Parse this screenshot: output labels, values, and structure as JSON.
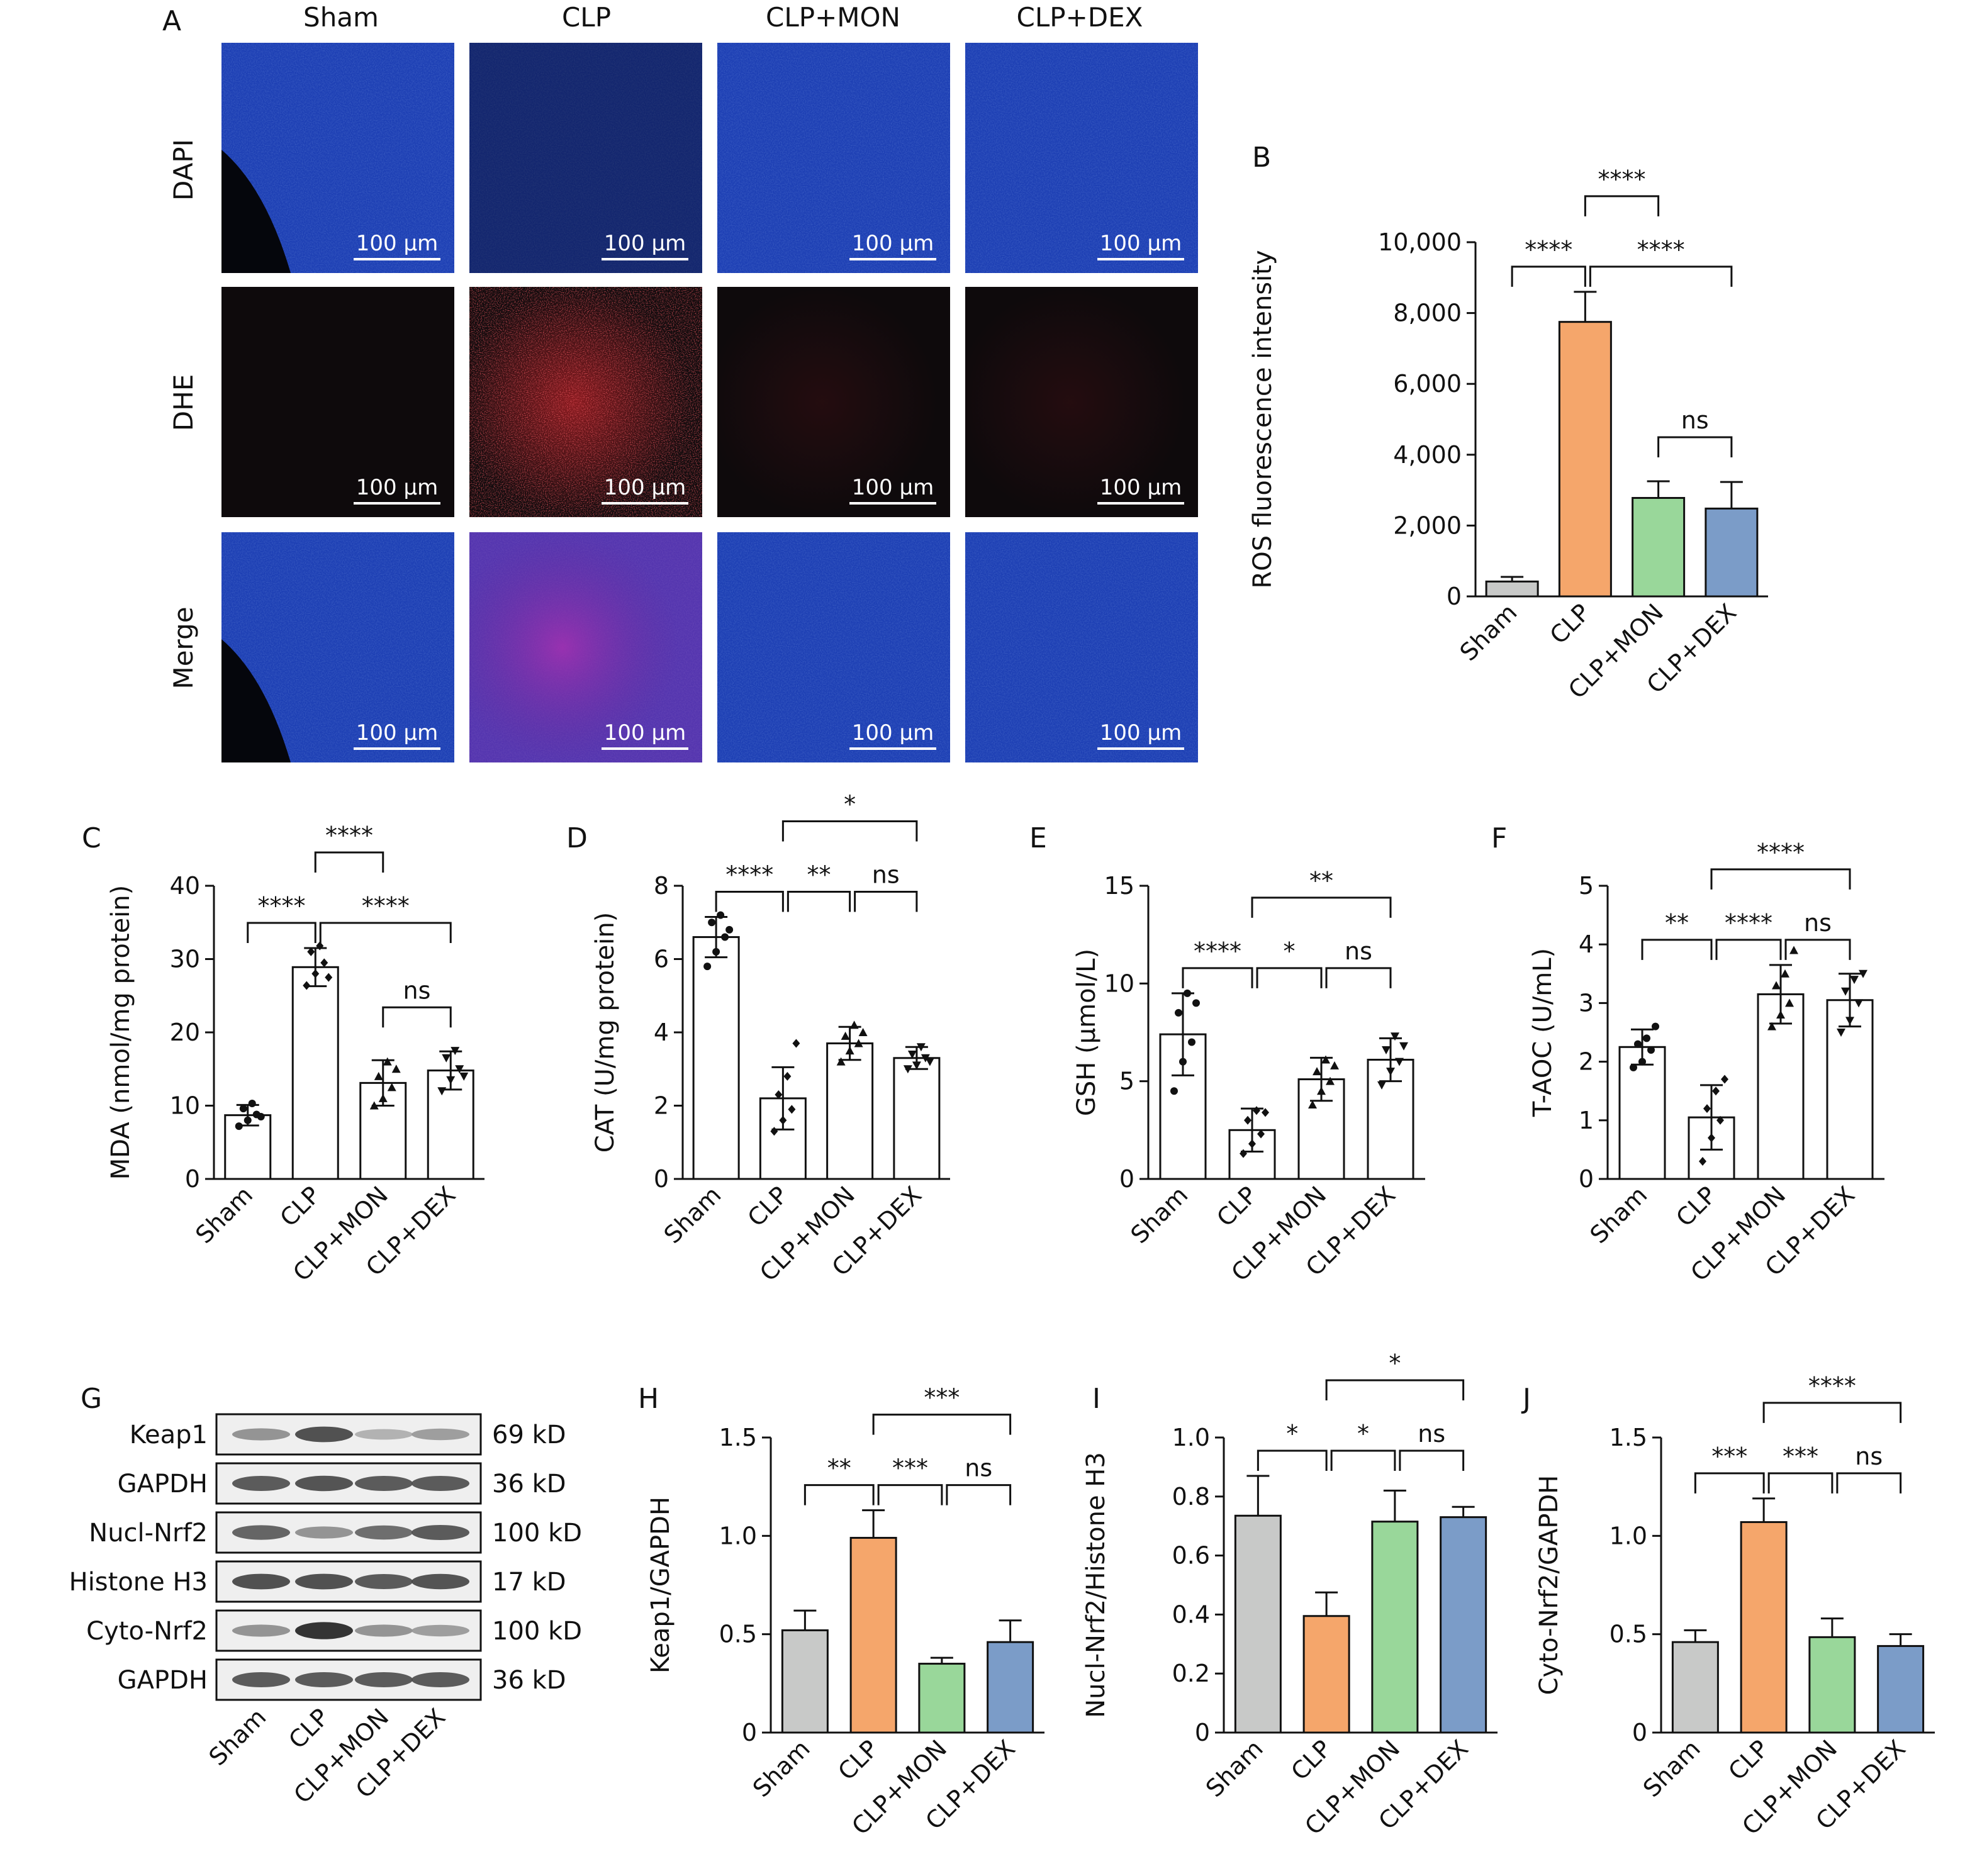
{
  "panel_A": {
    "letter": "A",
    "columns": [
      "Sham",
      "CLP",
      "CLP+MON",
      "CLP+DEX"
    ],
    "rows": [
      "DAPI",
      "DHE",
      "Merge"
    ],
    "scale_bar": "100 μm"
  },
  "colors": {
    "Sham": "#c8c9c8",
    "CLP": "#f5a66b",
    "CLP+MON": "#99d79a",
    "CLP+DEX": "#7b9cc8",
    "dapi": "#1d3fb4",
    "dhe": "#c8242a",
    "merge_purple": "#9a2aa8"
  },
  "western_blot": {
    "letter": "G",
    "rows": [
      {
        "label": "Keap1",
        "kd": "69 kD",
        "intensity": [
          0.45,
          0.8,
          0.3,
          0.4
        ]
      },
      {
        "label": "GAPDH",
        "kd": "36 kD",
        "intensity": [
          0.75,
          0.78,
          0.75,
          0.75
        ]
      },
      {
        "label": "Nucl-Nrf2",
        "kd": "100 kD",
        "intensity": [
          0.7,
          0.45,
          0.65,
          0.75
        ]
      },
      {
        "label": "Histone H3",
        "kd": "17 kD",
        "intensity": [
          0.8,
          0.8,
          0.75,
          0.78
        ]
      },
      {
        "label": "Cyto-Nrf2",
        "kd": "100 kD",
        "intensity": [
          0.45,
          0.95,
          0.45,
          0.4
        ]
      },
      {
        "label": "GAPDH",
        "kd": "36 kD",
        "intensity": [
          0.75,
          0.75,
          0.75,
          0.75
        ]
      }
    ],
    "lanes": [
      "Sham",
      "CLP",
      "CLP+MON",
      "CLP+DEX"
    ]
  },
  "chart_data": [
    {
      "id": "B",
      "letter": "B",
      "type": "bar",
      "colored": true,
      "ylabel": "ROS fluorescence intensity",
      "categories": [
        "Sham",
        "CLP",
        "CLP+MON",
        "CLP+DEX"
      ],
      "values": [
        420,
        7750,
        2780,
        2480
      ],
      "errors": [
        130,
        850,
        470,
        750
      ],
      "ylim": [
        0,
        10000
      ],
      "yticks": [
        0,
        2000,
        4000,
        6000,
        8000,
        10000
      ],
      "ytick_labels": [
        "0",
        "2,000",
        "4,000",
        "6,000",
        "8,000",
        "10,000"
      ],
      "comparisons": [
        {
          "a": 0,
          "b": 1,
          "label": "****",
          "level": 0
        },
        {
          "a": 1,
          "b": 3,
          "label": "****",
          "level": 0
        },
        {
          "a": 2,
          "b": 3,
          "label": "ns",
          "level": -1
        },
        {
          "a": 1,
          "b": 2,
          "label": "****",
          "level": 1
        }
      ]
    },
    {
      "id": "C",
      "letter": "C",
      "type": "bar",
      "colored": false,
      "ylabel": "MDA (nmol/mg protein)",
      "categories": [
        "Sham",
        "CLP",
        "CLP+MON",
        "CLP+DEX"
      ],
      "values": [
        8.7,
        28.9,
        13.1,
        14.8
      ],
      "errors": [
        1.4,
        2.6,
        3.1,
        2.6
      ],
      "points": [
        [
          7.2,
          8.0,
          8.8,
          9.6,
          10.3,
          8.5
        ],
        [
          26.4,
          28.0,
          29.5,
          31.0,
          31.8,
          27.5
        ],
        [
          10.0,
          11.0,
          12.5,
          14.0,
          16.0,
          15.0
        ],
        [
          12.0,
          13.5,
          15.0,
          16.5,
          17.5,
          14.0
        ]
      ],
      "ylim": [
        0,
        40
      ],
      "yticks": [
        0,
        10,
        20,
        30,
        40
      ],
      "ytick_labels": [
        "0",
        "10",
        "20",
        "30",
        "40"
      ],
      "comparisons": [
        {
          "a": 0,
          "b": 1,
          "label": "****",
          "level": 0
        },
        {
          "a": 1,
          "b": 3,
          "label": "****",
          "level": 0
        },
        {
          "a": 2,
          "b": 3,
          "label": "ns",
          "level": -1
        },
        {
          "a": 1,
          "b": 2,
          "label": "****",
          "level": 1
        }
      ]
    },
    {
      "id": "D",
      "letter": "D",
      "type": "bar",
      "colored": false,
      "ylabel": "CAT (U/mg protein)",
      "categories": [
        "Sham",
        "CLP",
        "CLP+MON",
        "CLP+DEX"
      ],
      "values": [
        6.6,
        2.2,
        3.7,
        3.3
      ],
      "errors": [
        0.55,
        0.85,
        0.45,
        0.3
      ],
      "points": [
        [
          5.8,
          6.2,
          6.6,
          7.0,
          7.2,
          6.8
        ],
        [
          1.3,
          1.6,
          1.9,
          2.3,
          2.8,
          3.7
        ],
        [
          3.2,
          3.5,
          3.7,
          3.9,
          4.2,
          4.0
        ],
        [
          3.0,
          3.1,
          3.3,
          3.4,
          3.6,
          3.2
        ]
      ],
      "ylim": [
        0,
        8
      ],
      "yticks": [
        0,
        2,
        4,
        6,
        8
      ],
      "ytick_labels": [
        "0",
        "2",
        "4",
        "6",
        "8"
      ],
      "comparisons": [
        {
          "a": 0,
          "b": 1,
          "label": "****",
          "level": 0
        },
        {
          "a": 1,
          "b": 2,
          "label": "**",
          "level": 0
        },
        {
          "a": 2,
          "b": 3,
          "label": "ns",
          "level": 0
        },
        {
          "a": 1,
          "b": 3,
          "label": "*",
          "level": 1
        }
      ]
    },
    {
      "id": "E",
      "letter": "E",
      "type": "bar",
      "colored": false,
      "ylabel": "GSH (μmol/L)",
      "categories": [
        "Sham",
        "CLP",
        "CLP+MON",
        "CLP+DEX"
      ],
      "values": [
        7.4,
        2.5,
        5.1,
        6.1
      ],
      "errors": [
        2.1,
        1.1,
        1.1,
        1.1
      ],
      "points": [
        [
          4.5,
          6.0,
          7.0,
          8.5,
          9.5,
          9.0
        ],
        [
          1.3,
          1.8,
          2.3,
          3.0,
          3.5,
          3.4
        ],
        [
          3.8,
          4.5,
          5.0,
          5.5,
          6.1,
          5.8
        ],
        [
          4.8,
          5.5,
          6.0,
          6.6,
          7.3,
          6.8
        ]
      ],
      "ylim": [
        0,
        15
      ],
      "yticks": [
        0,
        5,
        10,
        15
      ],
      "ytick_labels": [
        "0",
        "5",
        "10",
        "15"
      ],
      "comparisons": [
        {
          "a": 0,
          "b": 1,
          "label": "****",
          "level": 0
        },
        {
          "a": 1,
          "b": 2,
          "label": "*",
          "level": 0
        },
        {
          "a": 2,
          "b": 3,
          "label": "ns",
          "level": 0
        },
        {
          "a": 1,
          "b": 3,
          "label": "**",
          "level": 1
        }
      ]
    },
    {
      "id": "F",
      "letter": "F",
      "type": "bar",
      "colored": false,
      "ylabel": "T-AOC (U/mL)",
      "categories": [
        "Sham",
        "CLP",
        "CLP+MON",
        "CLP+DEX"
      ],
      "values": [
        2.25,
        1.05,
        3.15,
        3.05
      ],
      "errors": [
        0.3,
        0.55,
        0.5,
        0.45
      ],
      "points": [
        [
          1.9,
          2.0,
          2.2,
          2.3,
          2.4,
          2.6
        ],
        [
          0.3,
          0.7,
          1.0,
          1.2,
          1.5,
          1.7
        ],
        [
          2.6,
          2.8,
          3.0,
          3.3,
          3.5,
          3.9
        ],
        [
          2.5,
          2.7,
          3.0,
          3.2,
          3.4,
          3.5
        ]
      ],
      "ylim": [
        0,
        5
      ],
      "yticks": [
        0,
        1,
        2,
        3,
        4,
        5
      ],
      "ytick_labels": [
        "0",
        "1",
        "2",
        "3",
        "4",
        "5"
      ],
      "comparisons": [
        {
          "a": 0,
          "b": 1,
          "label": "**",
          "level": 0
        },
        {
          "a": 1,
          "b": 2,
          "label": "****",
          "level": 0
        },
        {
          "a": 2,
          "b": 3,
          "label": "ns",
          "level": 0
        },
        {
          "a": 1,
          "b": 3,
          "label": "****",
          "level": 1
        }
      ]
    },
    {
      "id": "H",
      "letter": "H",
      "type": "bar",
      "colored": true,
      "ylabel": "Keap1/GAPDH",
      "categories": [
        "Sham",
        "CLP",
        "CLP+MON",
        "CLP+DEX"
      ],
      "values": [
        0.52,
        0.99,
        0.35,
        0.46
      ],
      "errors": [
        0.1,
        0.14,
        0.03,
        0.11
      ],
      "ylim": [
        0,
        1.5
      ],
      "yticks": [
        0,
        0.5,
        1.0,
        1.5
      ],
      "ytick_labels": [
        "0",
        "0.5",
        "1.0",
        "1.5"
      ],
      "comparisons": [
        {
          "a": 0,
          "b": 1,
          "label": "**",
          "level": 0
        },
        {
          "a": 1,
          "b": 2,
          "label": "***",
          "level": 0
        },
        {
          "a": 2,
          "b": 3,
          "label": "ns",
          "level": 0
        },
        {
          "a": 1,
          "b": 3,
          "label": "***",
          "level": 1
        }
      ]
    },
    {
      "id": "I",
      "letter": "I",
      "type": "bar",
      "colored": true,
      "ylabel": "Nucl-Nrf2/Histone H3",
      "categories": [
        "Sham",
        "CLP",
        "CLP+MON",
        "CLP+DEX"
      ],
      "values": [
        0.735,
        0.395,
        0.715,
        0.73
      ],
      "errors": [
        0.135,
        0.08,
        0.105,
        0.035
      ],
      "ylim": [
        0,
        1.0
      ],
      "yticks": [
        0,
        0.2,
        0.4,
        0.6,
        0.8,
        1.0
      ],
      "ytick_labels": [
        "0",
        "0.2",
        "0.4",
        "0.6",
        "0.8",
        "1.0"
      ],
      "comparisons": [
        {
          "a": 0,
          "b": 1,
          "label": "*",
          "level": 0
        },
        {
          "a": 1,
          "b": 2,
          "label": "*",
          "level": 0
        },
        {
          "a": 2,
          "b": 3,
          "label": "ns",
          "level": 0
        },
        {
          "a": 1,
          "b": 3,
          "label": "*",
          "level": 1
        }
      ]
    },
    {
      "id": "J",
      "letter": "J",
      "type": "bar",
      "colored": true,
      "ylabel": "Cyto-Nrf2/GAPDH",
      "categories": [
        "Sham",
        "CLP",
        "CLP+MON",
        "CLP+DEX"
      ],
      "values": [
        0.46,
        1.07,
        0.485,
        0.44
      ],
      "errors": [
        0.06,
        0.12,
        0.095,
        0.06
      ],
      "ylim": [
        0,
        1.5
      ],
      "yticks": [
        0,
        0.5,
        1.0,
        1.5
      ],
      "ytick_labels": [
        "0",
        "0.5",
        "1.0",
        "1.5"
      ],
      "comparisons": [
        {
          "a": 0,
          "b": 1,
          "label": "***",
          "level": 0
        },
        {
          "a": 1,
          "b": 2,
          "label": "***",
          "level": 0
        },
        {
          "a": 2,
          "b": 3,
          "label": "ns",
          "level": 0
        },
        {
          "a": 1,
          "b": 3,
          "label": "****",
          "level": 1
        }
      ]
    }
  ]
}
